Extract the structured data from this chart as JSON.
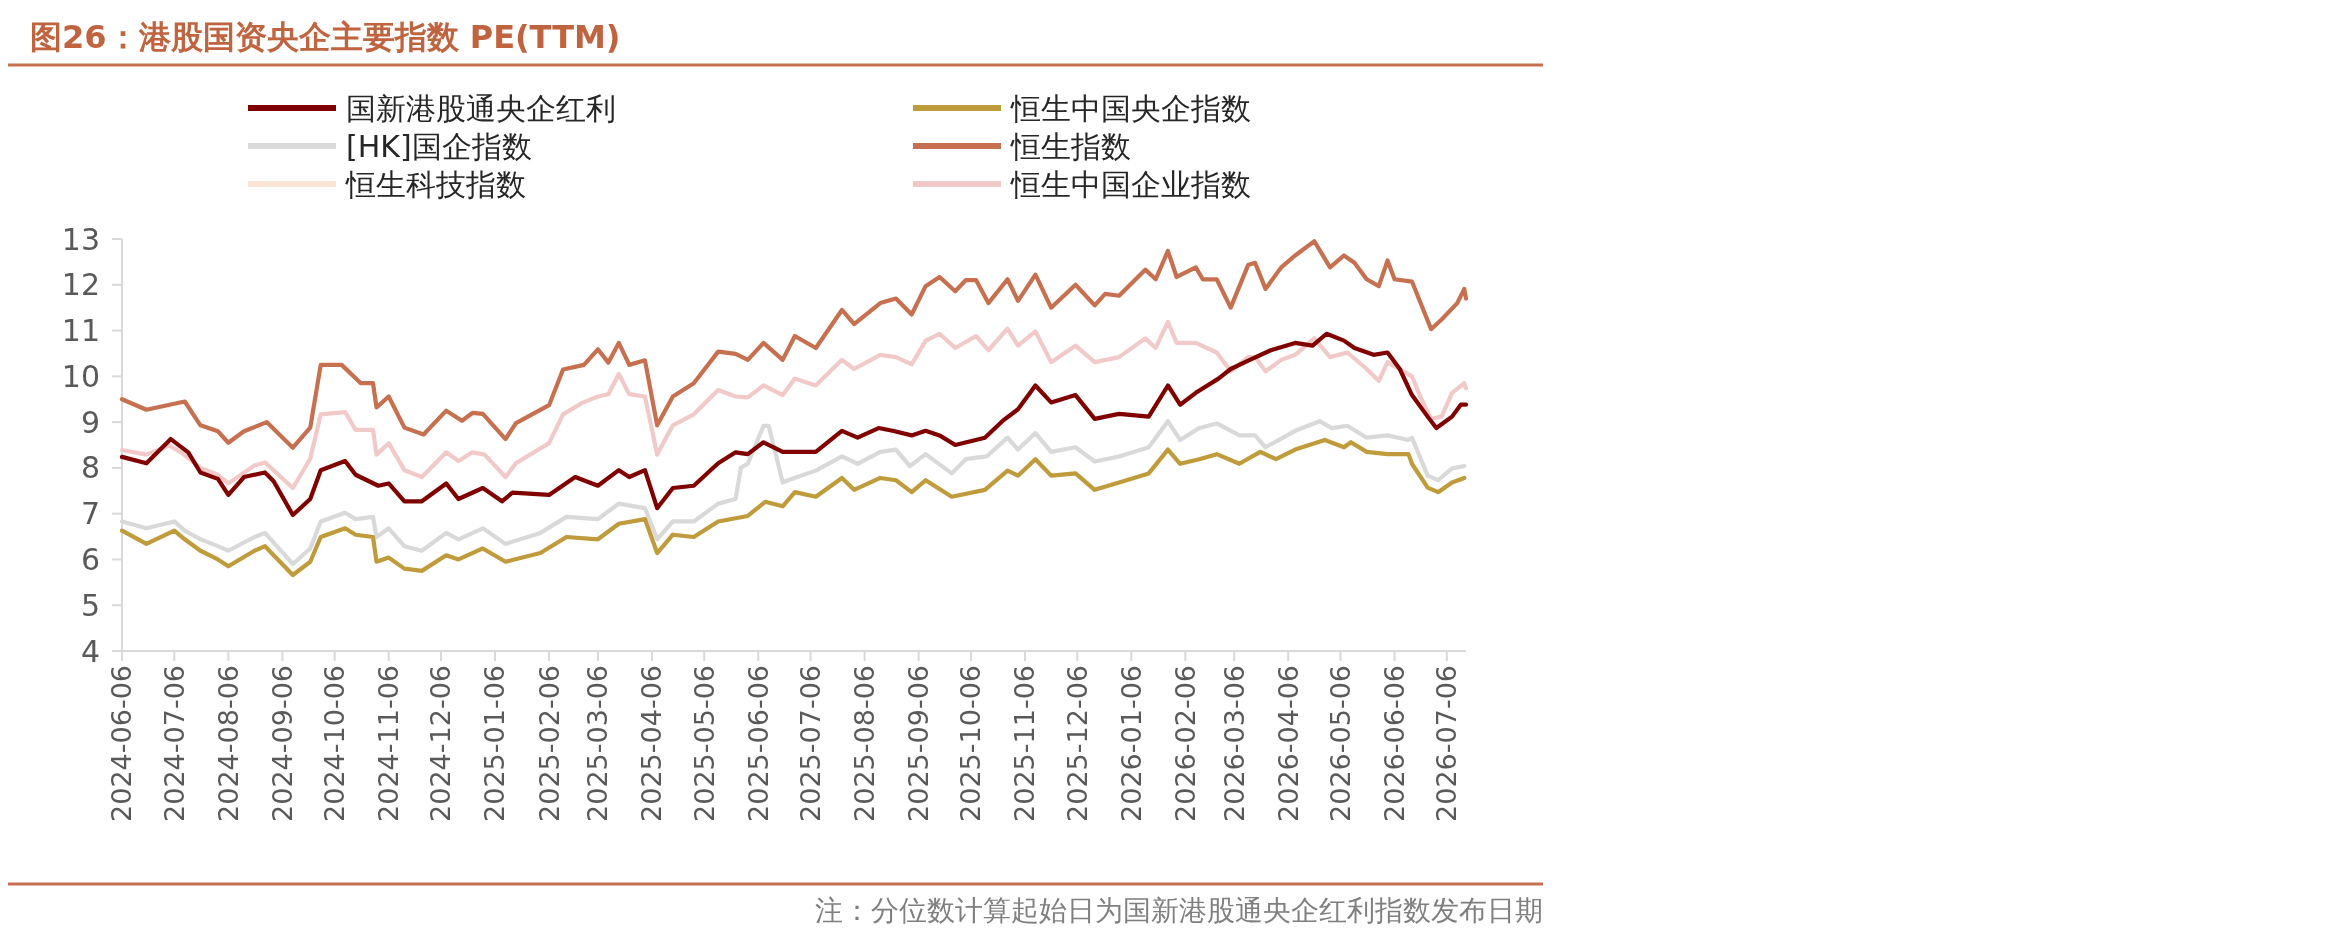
{
  "chart_data": {
    "type": "line",
    "title": "图26：港股国资央企主要指数 PE(TTM)",
    "annotations": [
      "注：分位数计算起始日为国新港股通央企红利指数发布日期"
    ],
    "xlim": [
      "2024-06-06",
      "2026-07-17"
    ],
    "ylim": [
      4,
      13
    ],
    "yticks": [
      4,
      5,
      6,
      7,
      8,
      9,
      10,
      11,
      12,
      13
    ],
    "xticks": [
      "2024-06-06",
      "2024-07-06",
      "2024-08-06",
      "2024-09-06",
      "2024-10-06",
      "2024-11-06",
      "2024-12-06",
      "2025-01-06",
      "2025-02-06",
      "2025-03-06",
      "2025-04-06",
      "2025-05-06",
      "2025-06-06",
      "2025-07-06",
      "2025-08-06",
      "2025-09-06",
      "2025-10-06",
      "2025-11-06",
      "2025-12-06",
      "2026-01-06",
      "2026-02-06",
      "2026-03-06",
      "2026-04-06",
      "2026-05-06",
      "2026-06-06",
      "2026-07-06"
    ],
    "grid": false,
    "legend": "top",
    "marker": "none",
    "line_style": "solid",
    "series": [
      {
        "name": "国新港股通央企红利",
        "color": "#800000",
        "x": [
          "2024-06-06",
          "2024-06-20",
          "2024-07-04",
          "2024-07-14",
          "2024-07-21",
          "2024-07-31",
          "2024-08-06",
          "2024-08-15",
          "2024-08-27",
          "2024-09-01",
          "2024-09-12",
          "2024-09-22",
          "2024-09-28",
          "2024-10-12",
          "2024-10-18",
          "2024-10-31",
          "2024-11-06",
          "2024-11-15",
          "2024-11-25",
          "2024-12-09",
          "2024-12-16",
          "2024-12-30",
          "2025-01-10",
          "2025-01-16",
          "2025-02-06",
          "2025-02-21",
          "2025-03-06",
          "2025-03-18",
          "2025-03-24",
          "2025-04-02",
          "2025-04-09",
          "2025-04-18",
          "2025-04-30",
          "2025-05-14",
          "2025-05-24",
          "2025-05-31",
          "2025-06-09",
          "2025-06-20",
          "2025-07-04",
          "2025-07-09",
          "2025-07-24",
          "2025-08-02",
          "2025-08-14",
          "2025-08-22",
          "2025-09-02",
          "2025-09-10",
          "2025-09-18",
          "2025-09-27",
          "2025-10-14",
          "2025-10-24",
          "2025-11-02",
          "2025-11-12",
          "2025-11-21",
          "2025-12-05",
          "2025-12-16",
          "2025-12-30",
          "2026-01-16",
          "2026-01-27",
          "2026-02-03",
          "2026-02-12",
          "2026-02-25",
          "2026-03-04",
          "2026-03-15",
          "2026-03-27",
          "2026-04-10",
          "2026-04-20",
          "2026-04-28",
          "2026-05-08",
          "2026-05-14",
          "2026-05-25",
          "2026-06-02",
          "2026-06-09",
          "2026-06-16",
          "2026-06-25",
          "2026-06-30",
          "2026-07-09",
          "2026-07-14",
          "2026-07-17"
        ],
        "values": [
          8.24,
          8.1,
          8.63,
          8.34,
          7.9,
          7.76,
          7.41,
          7.8,
          7.9,
          7.71,
          6.97,
          7.32,
          7.95,
          8.15,
          7.85,
          7.61,
          7.66,
          7.27,
          7.27,
          7.66,
          7.32,
          7.56,
          7.27,
          7.46,
          7.41,
          7.8,
          7.61,
          7.95,
          7.8,
          7.95,
          7.12,
          7.56,
          7.61,
          8.1,
          8.34,
          8.3,
          8.56,
          8.35,
          8.35,
          8.35,
          8.81,
          8.66,
          8.87,
          8.81,
          8.71,
          8.81,
          8.71,
          8.5,
          8.66,
          9.02,
          9.28,
          9.8,
          9.43,
          9.59,
          9.07,
          9.18,
          9.12,
          9.8,
          9.38,
          9.64,
          9.95,
          10.16,
          10.36,
          10.57,
          10.73,
          10.67,
          10.93,
          10.78,
          10.62,
          10.47,
          10.52,
          10.16,
          9.59,
          9.12,
          8.87,
          9.12,
          9.38,
          9.38
        ]
      },
      {
        "name": "恒生中国央企指数",
        "color": "#bf9b3b",
        "x": [
          "2024-06-06",
          "2024-06-20",
          "2024-07-06",
          "2024-07-12",
          "2024-07-21",
          "2024-07-31",
          "2024-08-06",
          "2024-08-21",
          "2024-08-27",
          "2024-09-12",
          "2024-09-22",
          "2024-09-28",
          "2024-10-12",
          "2024-10-18",
          "2024-10-28",
          "2024-10-30",
          "2024-11-06",
          "2024-11-15",
          "2024-11-25",
          "2024-12-09",
          "2024-12-16",
          "2024-12-30",
          "2025-01-12",
          "2025-02-01",
          "2025-02-16",
          "2025-03-06",
          "2025-03-18",
          "2025-04-02",
          "2025-04-09",
          "2025-04-18",
          "2025-04-30",
          "2025-05-14",
          "2025-05-31",
          "2025-06-10",
          "2025-06-20",
          "2025-06-27",
          "2025-07-09",
          "2025-07-24",
          "2025-07-31",
          "2025-08-15",
          "2025-08-24",
          "2025-09-02",
          "2025-09-10",
          "2025-09-25",
          "2025-10-14",
          "2025-10-27",
          "2025-11-02",
          "2025-11-12",
          "2025-11-21",
          "2025-12-05",
          "2025-12-16",
          "2025-12-30",
          "2026-01-16",
          "2026-01-27",
          "2026-02-03",
          "2026-02-14",
          "2026-02-24",
          "2026-03-09",
          "2026-03-21",
          "2026-03-30",
          "2026-04-10",
          "2026-04-27",
          "2026-05-08",
          "2026-05-12",
          "2026-05-21",
          "2026-06-02",
          "2026-06-14",
          "2026-06-16",
          "2026-06-25",
          "2026-07-01",
          "2026-07-09",
          "2026-07-16"
        ],
        "values": [
          6.63,
          6.34,
          6.63,
          6.44,
          6.19,
          6.0,
          5.85,
          6.19,
          6.29,
          5.66,
          5.95,
          6.49,
          6.68,
          6.54,
          6.49,
          5.95,
          6.04,
          5.8,
          5.75,
          6.09,
          6.0,
          6.24,
          5.95,
          6.14,
          6.49,
          6.44,
          6.78,
          6.88,
          6.14,
          6.54,
          6.49,
          6.83,
          6.95,
          7.26,
          7.16,
          7.47,
          7.37,
          7.78,
          7.52,
          7.78,
          7.73,
          7.47,
          7.73,
          7.37,
          7.52,
          7.94,
          7.83,
          8.19,
          7.83,
          7.88,
          7.52,
          7.68,
          7.88,
          8.4,
          8.09,
          8.19,
          8.3,
          8.09,
          8.35,
          8.19,
          8.4,
          8.61,
          8.45,
          8.56,
          8.35,
          8.3,
          8.3,
          8.09,
          7.57,
          7.47,
          7.68,
          7.78
        ]
      },
      {
        "name": "[HK]国企指数",
        "color": "#d9d9d9",
        "x": [
          "2024-06-06",
          "2024-06-20",
          "2024-07-06",
          "2024-07-12",
          "2024-07-21",
          "2024-07-31",
          "2024-08-06",
          "2024-08-21",
          "2024-08-27",
          "2024-09-12",
          "2024-09-22",
          "2024-09-28",
          "2024-10-12",
          "2024-10-18",
          "2024-10-28",
          "2024-10-30",
          "2024-11-06",
          "2024-11-15",
          "2024-11-25",
          "2024-12-09",
          "2024-12-16",
          "2024-12-30",
          "2025-01-12",
          "2025-02-01",
          "2025-02-16",
          "2025-03-06",
          "2025-03-18",
          "2025-04-02",
          "2025-04-09",
          "2025-04-18",
          "2025-04-30",
          "2025-05-14",
          "2025-05-24",
          "2025-05-27",
          "2025-05-31",
          "2025-06-09",
          "2025-06-12",
          "2025-06-20",
          "2025-06-23",
          "2025-07-09",
          "2025-07-24",
          "2025-08-02",
          "2025-08-15",
          "2025-08-24",
          "2025-09-01",
          "2025-09-10",
          "2025-09-25",
          "2025-10-03",
          "2025-10-15",
          "2025-10-27",
          "2025-11-02",
          "2025-11-12",
          "2025-11-21",
          "2025-12-05",
          "2025-12-16",
          "2025-12-30",
          "2026-01-16",
          "2026-01-27",
          "2026-02-03",
          "2026-02-14",
          "2026-02-24",
          "2026-03-09",
          "2026-03-18",
          "2026-03-24",
          "2026-04-10",
          "2026-04-24",
          "2026-05-01",
          "2026-05-10",
          "2026-05-21",
          "2026-06-02",
          "2026-06-14",
          "2026-06-16",
          "2026-06-25",
          "2026-07-01",
          "2026-07-09",
          "2026-07-16"
        ],
        "values": [
          6.83,
          6.68,
          6.83,
          6.63,
          6.44,
          6.29,
          6.19,
          6.49,
          6.58,
          5.9,
          6.24,
          6.83,
          7.02,
          6.88,
          6.93,
          6.49,
          6.68,
          6.29,
          6.19,
          6.58,
          6.44,
          6.68,
          6.34,
          6.58,
          6.93,
          6.88,
          7.22,
          7.12,
          6.44,
          6.83,
          6.83,
          7.22,
          7.32,
          8.0,
          8.09,
          8.92,
          8.92,
          7.68,
          7.73,
          7.94,
          8.25,
          8.09,
          8.35,
          8.4,
          8.04,
          8.3,
          7.88,
          8.19,
          8.25,
          8.66,
          8.4,
          8.76,
          8.35,
          8.45,
          8.14,
          8.25,
          8.45,
          9.02,
          8.61,
          8.87,
          8.97,
          8.71,
          8.71,
          8.45,
          8.81,
          9.02,
          8.87,
          8.92,
          8.66,
          8.71,
          8.61,
          8.66,
          7.83,
          7.73,
          7.99,
          8.04
        ]
      },
      {
        "name": "恒生指数",
        "color": "#c6704f",
        "x": [
          "2024-06-06",
          "2024-06-20",
          "2024-07-06",
          "2024-07-12",
          "2024-07-21",
          "2024-07-31",
          "2024-08-06",
          "2024-08-15",
          "2024-08-28",
          "2024-09-12",
          "2024-09-22",
          "2024-09-28",
          "2024-10-10",
          "2024-10-21",
          "2024-10-28",
          "2024-10-30",
          "2024-11-06",
          "2024-11-15",
          "2024-11-26",
          "2024-12-09",
          "2024-12-18",
          "2024-12-24",
          "2024-12-30",
          "2025-01-12",
          "2025-01-18",
          "2025-02-06",
          "2025-02-14",
          "2025-02-26",
          "2025-03-06",
          "2025-03-12",
          "2025-03-18",
          "2025-03-24",
          "2025-04-02",
          "2025-04-09",
          "2025-04-18",
          "2025-04-30",
          "2025-05-14",
          "2025-05-24",
          "2025-05-31",
          "2025-06-09",
          "2025-06-20",
          "2025-06-27",
          "2025-07-09",
          "2025-07-24",
          "2025-07-31",
          "2025-08-15",
          "2025-08-24",
          "2025-09-02",
          "2025-09-10",
          "2025-09-18",
          "2025-09-27",
          "2025-10-03",
          "2025-10-09",
          "2025-10-16",
          "2025-10-27",
          "2025-11-02",
          "2025-11-12",
          "2025-11-21",
          "2025-12-05",
          "2025-12-16",
          "2025-12-22",
          "2025-12-30",
          "2026-01-14",
          "2026-01-20",
          "2026-01-27",
          "2026-02-01",
          "2026-02-12",
          "2026-02-16",
          "2026-02-24",
          "2026-03-04",
          "2026-03-14",
          "2026-03-18",
          "2026-03-24",
          "2026-04-02",
          "2026-04-10",
          "2026-04-21",
          "2026-04-30",
          "2026-05-08",
          "2026-05-14",
          "2026-05-21",
          "2026-05-28",
          "2026-06-02",
          "2026-06-06",
          "2026-06-16",
          "2026-06-27",
          "2026-07-03",
          "2026-07-12",
          "2026-07-16",
          "2026-07-17"
        ],
        "values": [
          9.5,
          9.27,
          9.4,
          9.45,
          8.93,
          8.8,
          8.55,
          8.8,
          9.0,
          8.44,
          8.88,
          10.25,
          10.25,
          9.85,
          9.85,
          9.32,
          9.56,
          8.88,
          8.73,
          9.25,
          9.03,
          9.2,
          9.18,
          8.63,
          8.98,
          9.37,
          10.15,
          10.25,
          10.59,
          10.3,
          10.73,
          10.25,
          10.35,
          8.93,
          9.56,
          9.85,
          10.54,
          10.49,
          10.36,
          10.73,
          10.36,
          10.88,
          10.62,
          11.45,
          11.14,
          11.6,
          11.7,
          11.35,
          11.97,
          12.17,
          11.86,
          12.1,
          12.1,
          11.6,
          12.12,
          11.65,
          12.22,
          11.5,
          12.0,
          11.55,
          11.8,
          11.76,
          12.33,
          12.12,
          12.74,
          12.17,
          12.38,
          12.12,
          12.12,
          11.5,
          12.43,
          12.48,
          11.91,
          12.38,
          12.64,
          12.95,
          12.38,
          12.64,
          12.48,
          12.12,
          11.97,
          12.53,
          12.12,
          12.07,
          11.03,
          11.24,
          11.6,
          11.91,
          11.7
        ]
      },
      {
        "name": "恒生科技指数",
        "color": "#fbe5d6"
      },
      {
        "name": "恒生中国企业指数",
        "color": "#f2c9c9",
        "x": [
          "2024-06-06",
          "2024-06-20",
          "2024-07-03",
          "2024-07-10",
          "2024-07-21",
          "2024-07-31",
          "2024-08-06",
          "2024-08-21",
          "2024-08-27",
          "2024-09-12",
          "2024-09-22",
          "2024-09-28",
          "2024-10-12",
          "2024-10-18",
          "2024-10-28",
          "2024-10-30",
          "2024-11-06",
          "2024-11-15",
          "2024-11-25",
          "2024-12-09",
          "2024-12-16",
          "2024-12-24",
          "2024-12-31",
          "2025-01-12",
          "2025-01-18",
          "2025-02-06",
          "2025-02-14",
          "2025-02-25",
          "2025-03-06",
          "2025-03-12",
          "2025-03-18",
          "2025-03-24",
          "2025-04-02",
          "2025-04-09",
          "2025-04-18",
          "2025-04-30",
          "2025-05-14",
          "2025-05-24",
          "2025-05-31",
          "2025-06-09",
          "2025-06-20",
          "2025-06-27",
          "2025-07-09",
          "2025-07-24",
          "2025-07-31",
          "2025-08-15",
          "2025-08-24",
          "2025-09-02",
          "2025-09-10",
          "2025-09-18",
          "2025-09-27",
          "2025-10-09",
          "2025-10-16",
          "2025-10-27",
          "2025-11-02",
          "2025-11-12",
          "2025-11-21",
          "2025-12-05",
          "2025-12-16",
          "2025-12-30",
          "2026-01-14",
          "2026-01-20",
          "2026-01-27",
          "2026-02-01",
          "2026-02-12",
          "2026-02-24",
          "2026-03-04",
          "2026-03-14",
          "2026-03-18",
          "2026-03-24",
          "2026-04-02",
          "2026-04-10",
          "2026-04-21",
          "2026-04-30",
          "2026-05-10",
          "2026-05-21",
          "2026-05-28",
          "2026-06-02",
          "2026-06-16",
          "2026-06-21",
          "2026-06-27",
          "2026-07-03",
          "2026-07-09",
          "2026-07-16",
          "2026-07-17"
        ],
        "values": [
          8.39,
          8.29,
          8.49,
          8.34,
          8.0,
          7.85,
          7.66,
          8.05,
          8.12,
          7.56,
          8.2,
          9.17,
          9.22,
          8.83,
          8.83,
          8.29,
          8.54,
          7.95,
          7.8,
          8.34,
          8.15,
          8.34,
          8.29,
          7.8,
          8.1,
          8.54,
          9.17,
          9.42,
          9.56,
          9.61,
          10.05,
          9.61,
          9.56,
          8.29,
          8.93,
          9.17,
          9.7,
          9.56,
          9.54,
          9.8,
          9.59,
          9.95,
          9.8,
          10.36,
          10.16,
          10.47,
          10.42,
          10.26,
          10.78,
          10.93,
          10.62,
          10.88,
          10.57,
          11.04,
          10.67,
          10.98,
          10.31,
          10.67,
          10.31,
          10.42,
          10.83,
          10.62,
          11.19,
          10.73,
          10.73,
          10.52,
          10.11,
          10.42,
          10.42,
          10.11,
          10.36,
          10.47,
          10.83,
          10.42,
          10.52,
          10.16,
          9.9,
          10.31,
          10.0,
          9.54,
          9.07,
          9.12,
          9.64,
          9.85,
          9.74
        ]
      }
    ]
  }
}
